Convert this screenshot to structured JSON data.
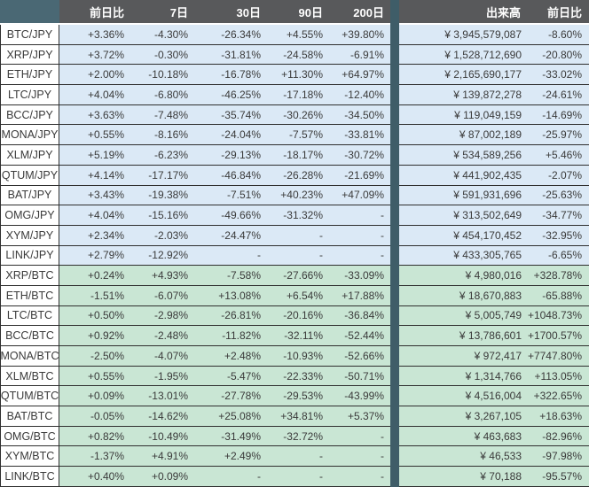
{
  "chart_data": {
    "type": "table",
    "columns": [
      "",
      "前日比",
      "7日",
      "30日",
      "90日",
      "200日",
      "出来高",
      "前日比"
    ],
    "colors": {
      "header_bg": "#58595b",
      "header_text": "#ffffff",
      "corner_bg": "#4a6874",
      "divider_bg": "#3f5d68",
      "jpy_row": "#dbe9f6",
      "btc_row": "#c9e6d4",
      "pair_bg": "#ffffff",
      "border": "#2f2f2f",
      "text": "#3a3a3a"
    },
    "sections": [
      {
        "name": "jpy",
        "rows": [
          {
            "pair": "BTC/JPY",
            "values": [
              "+3.36%",
              "-4.30%",
              "-26.34%",
              "+4.55%",
              "+39.80%",
              "¥ 3,945,579,087",
              "-8.60%"
            ]
          },
          {
            "pair": "XRP/JPY",
            "values": [
              "+3.72%",
              "-0.30%",
              "-31.81%",
              "-24.58%",
              "-6.91%",
              "¥ 1,528,712,690",
              "-20.80%"
            ]
          },
          {
            "pair": "ETH/JPY",
            "values": [
              "+2.00%",
              "-10.18%",
              "-16.78%",
              "+11.30%",
              "+64.97%",
              "¥ 2,165,690,177",
              "-33.02%"
            ]
          },
          {
            "pair": "LTC/JPY",
            "values": [
              "+4.04%",
              "-6.80%",
              "-46.25%",
              "-17.18%",
              "-12.40%",
              "¥ 139,872,278",
              "-24.61%"
            ]
          },
          {
            "pair": "BCC/JPY",
            "values": [
              "+3.63%",
              "-7.48%",
              "-35.74%",
              "-30.26%",
              "-34.50%",
              "¥ 119,049,159",
              "-14.69%"
            ]
          },
          {
            "pair": "MONA/JPY",
            "values": [
              "+0.55%",
              "-8.16%",
              "-24.04%",
              "-7.57%",
              "-33.81%",
              "¥ 87,002,189",
              "-25.97%"
            ]
          },
          {
            "pair": "XLM/JPY",
            "values": [
              "+5.19%",
              "-6.23%",
              "-29.13%",
              "-18.17%",
              "-30.72%",
              "¥ 534,589,256",
              "+5.46%"
            ]
          },
          {
            "pair": "QTUM/JPY",
            "values": [
              "+4.14%",
              "-17.17%",
              "-46.84%",
              "-26.28%",
              "-21.69%",
              "¥ 441,902,435",
              "-2.07%"
            ]
          },
          {
            "pair": "BAT/JPY",
            "values": [
              "+3.43%",
              "-19.38%",
              "-7.51%",
              "+40.23%",
              "+47.09%",
              "¥ 591,931,696",
              "-25.63%"
            ]
          },
          {
            "pair": "OMG/JPY",
            "values": [
              "+4.04%",
              "-15.16%",
              "-49.66%",
              "-31.32%",
              "-",
              "¥ 313,502,649",
              "-34.77%"
            ]
          },
          {
            "pair": "XYM/JPY",
            "values": [
              "+2.34%",
              "-2.03%",
              "-24.47%",
              "-",
              "-",
              "¥ 454,170,452",
              "-32.95%"
            ]
          },
          {
            "pair": "LINK/JPY",
            "values": [
              "+2.79%",
              "-12.92%",
              "-",
              "-",
              "-",
              "¥ 433,305,765",
              "-6.65%"
            ]
          }
        ]
      },
      {
        "name": "btc",
        "rows": [
          {
            "pair": "XRP/BTC",
            "values": [
              "+0.24%",
              "+4.93%",
              "-7.58%",
              "-27.66%",
              "-33.09%",
              "¥ 4,980,016",
              "+328.78%"
            ]
          },
          {
            "pair": "ETH/BTC",
            "values": [
              "-1.51%",
              "-6.07%",
              "+13.08%",
              "+6.54%",
              "+17.88%",
              "¥ 18,670,883",
              "-65.88%"
            ]
          },
          {
            "pair": "LTC/BTC",
            "values": [
              "+0.50%",
              "-2.98%",
              "-26.81%",
              "-20.16%",
              "-36.84%",
              "¥ 5,005,749",
              "+1048.73%"
            ]
          },
          {
            "pair": "BCC/BTC",
            "values": [
              "+0.92%",
              "-2.48%",
              "-11.82%",
              "-32.11%",
              "-52.44%",
              "¥ 13,786,601",
              "+1700.57%"
            ]
          },
          {
            "pair": "MONA/BTC",
            "values": [
              "-2.50%",
              "-4.07%",
              "+2.48%",
              "-10.93%",
              "-52.66%",
              "¥ 972,417",
              "+7747.80%"
            ]
          },
          {
            "pair": "XLM/BTC",
            "values": [
              "+0.55%",
              "-1.95%",
              "-5.47%",
              "-22.33%",
              "-50.71%",
              "¥ 1,314,766",
              "+113.05%"
            ]
          },
          {
            "pair": "QTUM/BTC",
            "values": [
              "+0.09%",
              "-13.01%",
              "-27.78%",
              "-29.53%",
              "-43.99%",
              "¥ 4,516,004",
              "+322.65%"
            ]
          },
          {
            "pair": "BAT/BTC",
            "values": [
              "-0.05%",
              "-14.62%",
              "+25.08%",
              "+34.81%",
              "+5.37%",
              "¥ 3,267,105",
              "+18.63%"
            ]
          },
          {
            "pair": "OMG/BTC",
            "values": [
              "+0.82%",
              "-10.49%",
              "-31.49%",
              "-32.72%",
              "-",
              "¥ 463,683",
              "-82.96%"
            ]
          },
          {
            "pair": "XYM/BTC",
            "values": [
              "-1.37%",
              "+4.91%",
              "+2.49%",
              "-",
              "-",
              "¥ 46,533",
              "-97.98%"
            ]
          },
          {
            "pair": "LINK/BTC",
            "values": [
              "+0.40%",
              "+0.09%",
              "-",
              "-",
              "-",
              "¥ 70,188",
              "-95.57%"
            ]
          }
        ]
      }
    ]
  }
}
